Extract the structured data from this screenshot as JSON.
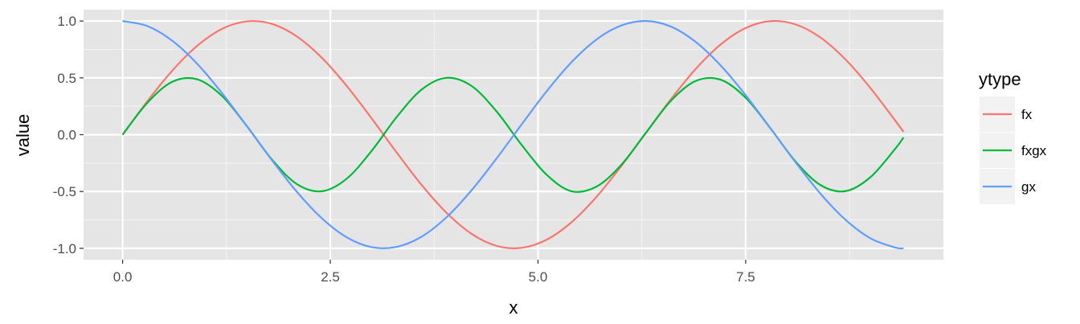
{
  "chart_data": {
    "type": "line",
    "title": "",
    "xlabel": "x",
    "ylabel": "value",
    "xlim": [
      -0.47,
      9.88
    ],
    "ylim": [
      -1.1,
      1.1
    ],
    "x_ticks": [
      0,
      2.5,
      5,
      7.5
    ],
    "x_tick_labels": [
      "0.0",
      "2.5",
      "5.0",
      "7.5"
    ],
    "y_ticks": [
      -1,
      -0.5,
      0,
      0.5,
      1
    ],
    "y_tick_labels": [
      "-1.0",
      "-0.5",
      "0.0",
      "0.5",
      "1.0"
    ],
    "grid": true,
    "background": "#e5e5e5",
    "legend": {
      "title": "ytype",
      "placement": "right"
    },
    "x": [
      0,
      0.3,
      0.6,
      0.9,
      1.2,
      1.5,
      1.8,
      2.1,
      2.4,
      2.7,
      3.0,
      3.3,
      3.6,
      3.9,
      4.2,
      4.5,
      4.8,
      5.1,
      5.4,
      5.7,
      6.0,
      6.3,
      6.6,
      6.9,
      7.2,
      7.5,
      7.8,
      8.1,
      8.4,
      8.7,
      9.0,
      9.3,
      9.4
    ],
    "series": [
      {
        "name": "fx",
        "color": "#f8766d",
        "values": [
          0,
          0.296,
          0.565,
          0.783,
          0.932,
          0.997,
          0.974,
          0.863,
          0.675,
          0.427,
          0.141,
          -0.158,
          -0.443,
          -0.688,
          -0.872,
          -0.978,
          -0.996,
          -0.926,
          -0.773,
          -0.551,
          -0.279,
          0.017,
          0.312,
          0.579,
          0.794,
          0.938,
          0.999,
          0.97,
          0.855,
          0.663,
          0.412,
          0.124,
          0.025
        ]
      },
      {
        "name": "fxgx",
        "color": "#00ba38",
        "values": [
          0,
          0.282,
          0.466,
          0.487,
          0.338,
          0.071,
          -0.221,
          -0.436,
          -0.498,
          -0.386,
          -0.14,
          0.156,
          0.397,
          0.5,
          0.429,
          0.206,
          -0.087,
          -0.35,
          -0.497,
          -0.459,
          -0.268,
          0.017,
          0.298,
          0.473,
          0.483,
          0.325,
          0.054,
          -0.236,
          -0.443,
          -0.497,
          -0.375,
          -0.124,
          -0.025
        ]
      },
      {
        "name": "gx",
        "color": "#619cff",
        "values": [
          1,
          0.955,
          0.825,
          0.622,
          0.362,
          0.071,
          -0.227,
          -0.505,
          -0.737,
          -0.904,
          -0.99,
          -0.987,
          -0.897,
          -0.726,
          -0.49,
          -0.211,
          0.087,
          0.378,
          0.635,
          0.835,
          0.96,
          1.0,
          0.951,
          0.815,
          0.608,
          0.347,
          0.054,
          -0.243,
          -0.519,
          -0.748,
          -0.911,
          -0.993,
          -1.0
        ]
      }
    ]
  }
}
